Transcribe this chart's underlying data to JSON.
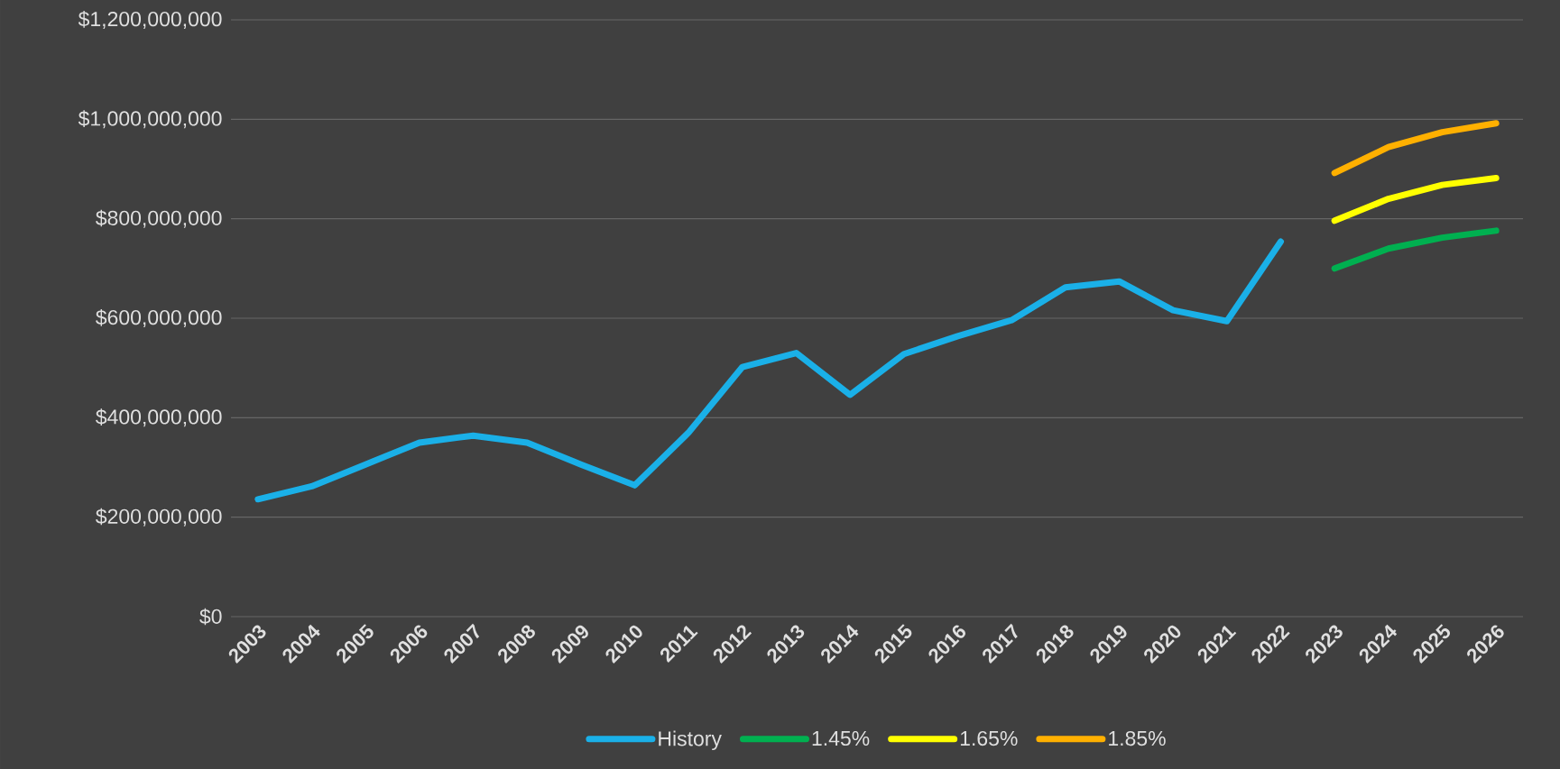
{
  "chart_data": {
    "type": "line",
    "categories": [
      "2003",
      "2004",
      "2005",
      "2006",
      "2007",
      "2008",
      "2009",
      "2010",
      "2011",
      "2012",
      "2013",
      "2014",
      "2015",
      "2016",
      "2017",
      "2018",
      "2019",
      "2020",
      "2021",
      "2022",
      "2023",
      "2024",
      "2025",
      "2026"
    ],
    "series": [
      {
        "name": "History",
        "color": "#1ab0e8",
        "values": [
          236000000,
          262000000,
          306000000,
          350000000,
          364000000,
          350000000,
          306000000,
          264000000,
          370000000,
          502000000,
          530000000,
          446000000,
          528000000,
          564000000,
          596000000,
          662000000,
          674000000,
          616000000,
          594000000,
          754000000,
          null,
          null,
          null,
          null
        ]
      },
      {
        "name": "1.45%",
        "color": "#00b050",
        "values": [
          null,
          null,
          null,
          null,
          null,
          null,
          null,
          null,
          null,
          null,
          null,
          null,
          null,
          null,
          null,
          null,
          null,
          null,
          null,
          null,
          700000000,
          740000000,
          762000000,
          776000000
        ]
      },
      {
        "name": "1.65%",
        "color": "#ffff00",
        "values": [
          null,
          null,
          null,
          null,
          null,
          null,
          null,
          null,
          null,
          null,
          null,
          null,
          null,
          null,
          null,
          null,
          null,
          null,
          null,
          null,
          796000000,
          840000000,
          868000000,
          882000000
        ]
      },
      {
        "name": "1.85%",
        "color": "#ffb000",
        "values": [
          null,
          null,
          null,
          null,
          null,
          null,
          null,
          null,
          null,
          null,
          null,
          null,
          null,
          null,
          null,
          null,
          null,
          null,
          null,
          null,
          892000000,
          944000000,
          974000000,
          992000000
        ]
      }
    ],
    "ylim": [
      0,
      1200000000
    ],
    "yticks": [
      {
        "value": 0,
        "label": "$0"
      },
      {
        "value": 200000000,
        "label": "$200,000,000"
      },
      {
        "value": 400000000,
        "label": "$400,000,000"
      },
      {
        "value": 600000000,
        "label": "$600,000,000"
      },
      {
        "value": 800000000,
        "label": "$800,000,000"
      },
      {
        "value": 1000000000,
        "label": "$1,000,000,000"
      },
      {
        "value": 1200000000,
        "label": "$1,200,000,000"
      }
    ],
    "grid": "y",
    "legend": "bottom"
  }
}
